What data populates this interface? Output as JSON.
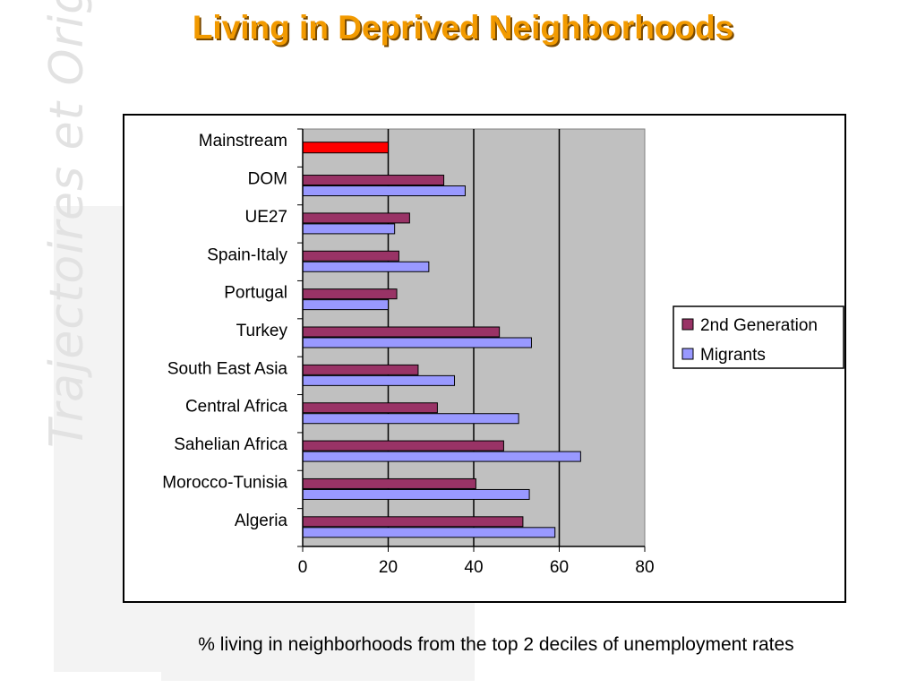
{
  "title": "Living in Deprived Neighborhoods",
  "watermark": "Trajectoires et Origines",
  "caption": "% living in neighborhoods from the top 2 deciles of unemployment rates",
  "colors": {
    "title": "#f29a00",
    "second_generation": "#993366",
    "migrants": "#9999ff",
    "mainstream": "#ff0000",
    "plot_background": "#c0c0c0"
  },
  "chart_data": {
    "type": "bar",
    "orientation": "horizontal",
    "categories": [
      "Mainstream",
      "DOM",
      "UE27",
      "Spain-Italy",
      "Portugal",
      "Turkey",
      "South East Asia",
      "Central Africa",
      "Sahelian Africa",
      "Morocco-Tunisia",
      "Algeria"
    ],
    "series": [
      {
        "name": "2nd Generation",
        "values": [
          20,
          33,
          25,
          22.5,
          22,
          46,
          27,
          31.5,
          47,
          40.5,
          51.5
        ]
      },
      {
        "name": "Migrants",
        "values": [
          null,
          38,
          21.5,
          29.5,
          20,
          53.5,
          35.5,
          50.5,
          65,
          53,
          59
        ]
      }
    ],
    "xlim": [
      0,
      80
    ],
    "xticks": [
      0,
      20,
      40,
      60,
      80
    ],
    "grid": true,
    "legend_position": "right",
    "xlabel": "",
    "ylabel": ""
  }
}
